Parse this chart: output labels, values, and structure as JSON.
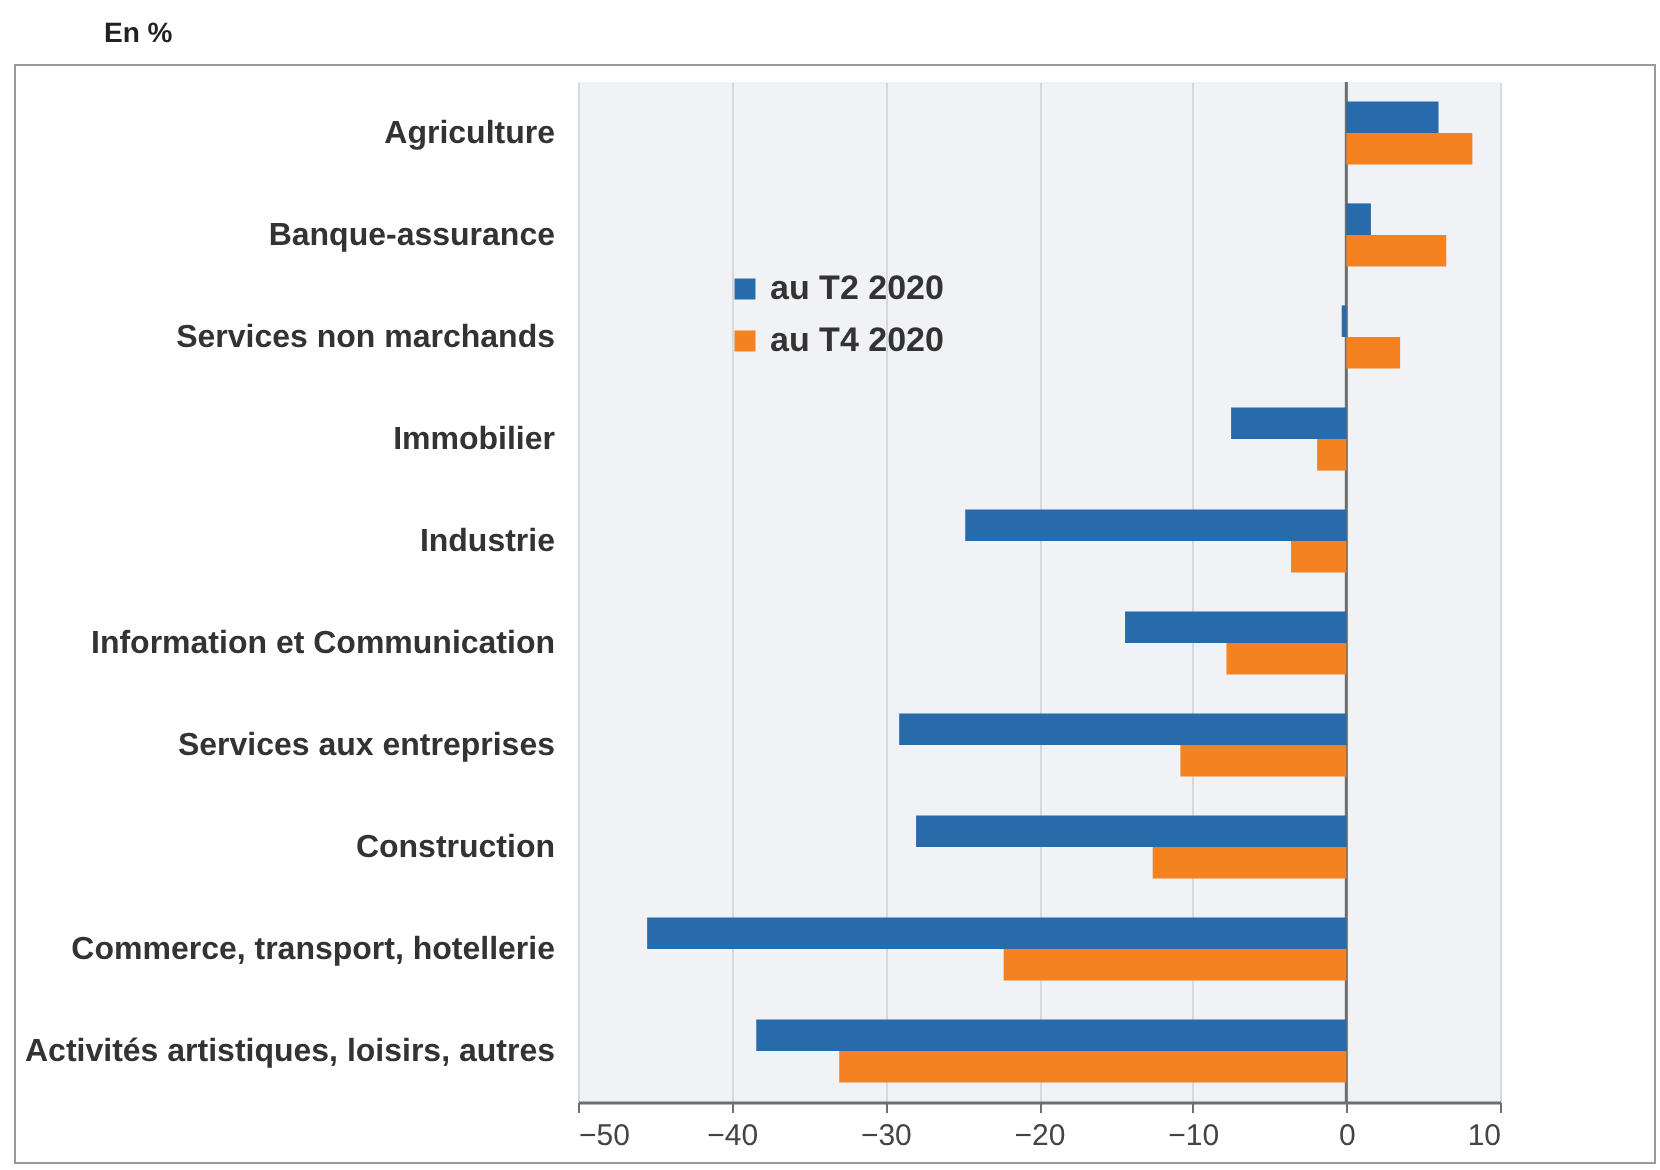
{
  "chart_data": {
    "type": "bar",
    "orientation": "horizontal",
    "title": "En %",
    "categories": [
      "Agriculture",
      "Banque-assurance",
      "Services non marchands",
      "Immobilier",
      "Industrie",
      "Information et Communication",
      "Services aux entreprises",
      "Construction",
      "Commerce, transport, hotellerie",
      "Activités artistiques, loisirs, autres"
    ],
    "series": [
      {
        "name": "au T2 2020",
        "color": "#286bab",
        "values": [
          6.0,
          1.6,
          -0.3,
          -7.5,
          -24.8,
          -14.4,
          -29.1,
          -28.0,
          -45.5,
          -38.4
        ]
      },
      {
        "name": "au T4 2020",
        "color": "#f58220",
        "values": [
          8.2,
          6.5,
          3.5,
          -1.9,
          -3.6,
          -7.8,
          -10.8,
          -12.6,
          -22.3,
          -33.0
        ]
      }
    ],
    "xlim": [
      -50,
      10
    ],
    "xticks": [
      -50,
      -40,
      -30,
      -20,
      -10,
      0,
      10
    ],
    "ref_lines": [
      {
        "axis": "x",
        "value": 0,
        "color": "#6e6e6e"
      }
    ],
    "grid": "x",
    "legend": "top left"
  }
}
